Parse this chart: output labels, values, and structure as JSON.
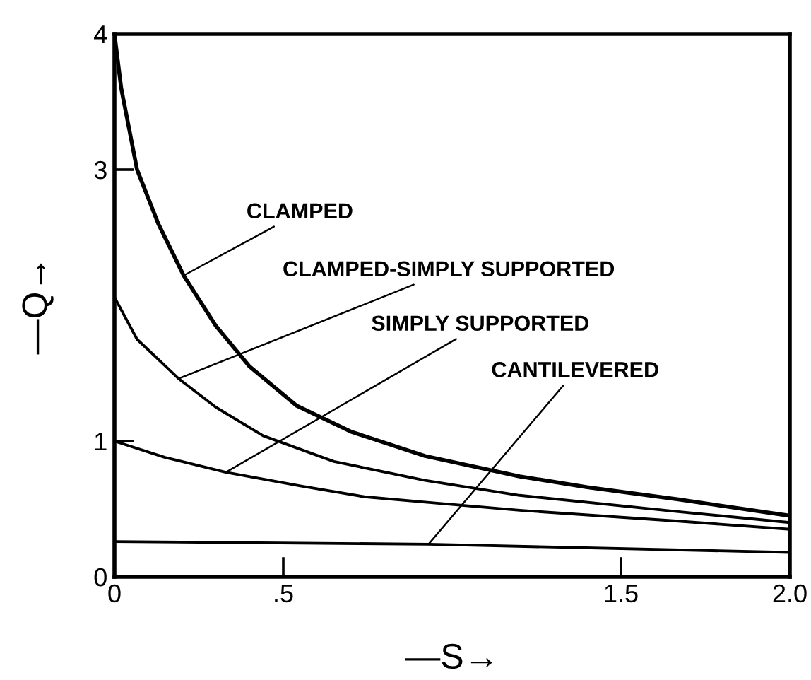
{
  "chart_data": {
    "type": "line",
    "xlabel": "—S→",
    "ylabel": "—Q→",
    "xlim": [
      0,
      2.0
    ],
    "ylim": [
      0,
      4
    ],
    "xticks": [
      0,
      {
        "value": 0.5,
        "label": ".5"
      },
      1.5,
      {
        "value": 2.0,
        "label": "2.0"
      }
    ],
    "yticks": [
      0,
      1,
      3,
      4
    ],
    "grid": false,
    "legend": false,
    "marker": "none",
    "line_style": "solid",
    "series": [
      {
        "color": "#000000",
        "x": [
          0,
          0.02,
          0.067,
          0.13,
          0.205,
          0.3,
          0.4,
          0.54,
          0.7,
          0.92,
          1.2,
          1.4,
          1.67,
          2.0
        ],
        "values": [
          4.0,
          3.6,
          3.0,
          2.6,
          2.22,
          1.85,
          1.55,
          1.26,
          1.07,
          0.89,
          0.74,
          0.66,
          0.57,
          0.45
        ]
      },
      {
        "color": "#000000",
        "x": [
          0,
          0.067,
          0.19,
          0.3,
          0.44,
          0.65,
          0.92,
          1.2,
          1.67,
          2.0
        ],
        "values": [
          2.06,
          1.75,
          1.46,
          1.25,
          1.04,
          0.85,
          0.71,
          0.6,
          0.48,
          0.4
        ]
      },
      {
        "color": "#000000",
        "x": [
          0,
          0.15,
          0.33,
          0.55,
          0.74,
          0.92,
          1.2,
          1.67,
          2.0
        ],
        "values": [
          1.0,
          0.88,
          0.77,
          0.67,
          0.59,
          0.55,
          0.49,
          0.41,
          0.35
        ]
      },
      {
        "color": "#000000",
        "x": [
          0,
          0.93,
          2.0
        ],
        "values": [
          0.26,
          0.24,
          0.18
        ]
      }
    ],
    "annotations": [
      {
        "text": "CLAMPED",
        "x": 0.205,
        "y": 2.22
      },
      {
        "text": "CLAMPED-SIMPLY SUPPORTED",
        "x": 0.19,
        "y": 1.46
      },
      {
        "text": "SIMPLY SUPPORTED",
        "x": 0.33,
        "y": 0.77
      },
      {
        "text": "CANTILEVERED",
        "x": 0.93,
        "y": 0.24
      }
    ]
  }
}
